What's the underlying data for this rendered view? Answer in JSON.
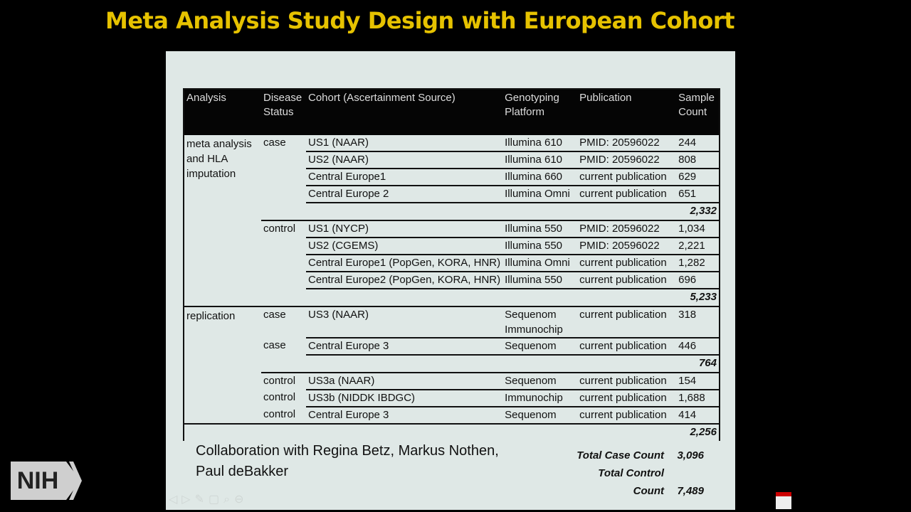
{
  "title": "Meta Analysis Study Design with European Cohort",
  "columns": [
    "Analysis",
    "Disease Status",
    "Cohort (Ascertainment Source)",
    "Genotyping Platform",
    "Publication",
    "Sample Count"
  ],
  "groups": [
    {
      "analysis": "meta analysis and HLA imputation",
      "subgroups": [
        {
          "status": "case",
          "rows": [
            {
              "cohort": "US1 (NAAR)",
              "platform": "Illumina 610",
              "pub": "PMID: 20596022",
              "count": "244"
            },
            {
              "cohort": "US2 (NAAR)",
              "platform": "Illumina 610",
              "pub": "PMID: 20596022",
              "count": "808"
            },
            {
              "cohort": "Central Europe1",
              "platform": "Illumina 660",
              "pub": "current publication",
              "count": "629"
            },
            {
              "cohort": "Central Europe 2",
              "platform": "Illumina Omni",
              "pub": "current publication",
              "count": "651"
            }
          ],
          "subtotal": "2,332"
        },
        {
          "status": "control",
          "rows": [
            {
              "cohort": "US1 (NYCP)",
              "platform": "Illumina 550",
              "pub": "PMID: 20596022",
              "count": "1,034"
            },
            {
              "cohort": "US2 (CGEMS)",
              "platform": "Illumina 550",
              "pub": "PMID: 20596022",
              "count": "2,221"
            },
            {
              "cohort": "Central Europe1 (PopGen, KORA, HNR)",
              "platform": "Illumina Omni",
              "pub": "current publication",
              "count": "1,282"
            },
            {
              "cohort": "Central Europe2 (PopGen, KORA, HNR)",
              "platform": "Illumina 550",
              "pub": "current publication",
              "count": "696"
            }
          ],
          "subtotal": "5,233"
        }
      ]
    },
    {
      "analysis": "replication",
      "subgroups": [
        {
          "status": "case",
          "rows": [
            {
              "cohort": "US3 (NAAR)",
              "platform": "Sequenom Immunochip",
              "pub": "current publication",
              "count": "318"
            }
          ]
        },
        {
          "status": "case",
          "rows": [
            {
              "cohort": "Central Europe 3",
              "platform": "Sequenom",
              "pub": "current publication",
              "count": "446"
            }
          ],
          "subtotal": "764"
        },
        {
          "status": "control",
          "rows": [
            {
              "cohort": "US3a (NAAR)",
              "platform": "Sequenom",
              "pub": "current publication",
              "count": "154"
            }
          ]
        },
        {
          "status": "control",
          "rows": [
            {
              "cohort": "US3b (NIDDK IBDGC)",
              "platform": "Immunochip",
              "pub": "current publication",
              "count": "1,688"
            }
          ]
        },
        {
          "status": "control",
          "rows": [
            {
              "cohort": "Central Europe 3",
              "platform": "Sequenom",
              "pub": "current publication",
              "count": "414"
            }
          ]
        }
      ]
    }
  ],
  "final_subtotal": "2,256",
  "collaboration": [
    "Collaboration with Regina Betz, Markus Nothen,",
    "Paul deBakker"
  ],
  "totals": [
    {
      "label": "Total Case Count",
      "value": "3,096"
    },
    {
      "label": "Total Control Count",
      "value": "7,489"
    }
  ],
  "logo": "NIH"
}
